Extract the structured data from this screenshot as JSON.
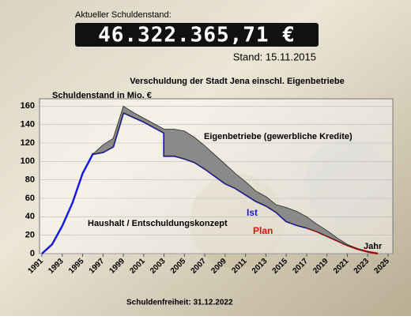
{
  "header": {
    "counter_label": "Aktueller Schuldenstand:",
    "counter_value": "46.322.365,71 €",
    "stand": "Stand: 15.11.2015"
  },
  "chart_data": {
    "type": "line",
    "title": "Verschuldung der Stadt Jena einschl. Eigenbetriebe",
    "y_label": "Schuldenstand in Mio. €",
    "x_label": "Jahr",
    "annotations": [
      "Eigenbetriebe (gewerbliche Kredite)",
      "Haushalt / Entschuldungskonzept",
      "Schuldenfreiheit: 31.12.2022"
    ],
    "x": [
      1991,
      1992,
      1993,
      1994,
      1995,
      1996,
      1997,
      1998,
      1999,
      2000,
      2001,
      2002,
      2003,
      2003,
      2004,
      2005,
      2006,
      2007,
      2008,
      2009,
      2010,
      2011,
      2012,
      2013,
      2014,
      2015,
      2016,
      2017,
      2018,
      2019,
      2020,
      2021,
      2022,
      2023,
      2024
    ],
    "series": [
      {
        "name": "Ist",
        "color": "#1a1adc",
        "values": [
          0,
          10,
          30,
          55,
          87,
          108,
          110,
          116,
          153,
          148,
          143,
          137,
          131,
          106,
          106,
          103,
          99,
          92,
          84,
          76,
          71,
          64,
          57,
          52,
          45,
          35,
          31,
          28,
          null,
          null,
          null,
          null,
          null,
          null,
          null
        ]
      },
      {
        "name": "Plan",
        "color": "#dd1111",
        "values": [
          null,
          null,
          null,
          null,
          null,
          null,
          null,
          null,
          null,
          null,
          null,
          null,
          null,
          null,
          null,
          null,
          null,
          null,
          null,
          null,
          null,
          null,
          null,
          null,
          null,
          null,
          null,
          28,
          24,
          19,
          14,
          9,
          5,
          2,
          0
        ]
      },
      {
        "name": "Eigenbetriebe (gewerbliche Kredite)",
        "color": "#8a8a8a",
        "stacked": true,
        "values": [
          null,
          null,
          null,
          null,
          null,
          0,
          8,
          9,
          7,
          5,
          4,
          4,
          4,
          29,
          29,
          30,
          27,
          25,
          23,
          21,
          16,
          14,
          11,
          10,
          8,
          15,
          15,
          12,
          8,
          6,
          3,
          1,
          0,
          0,
          0
        ]
      }
    ],
    "xlim": [
      1991,
      2025
    ],
    "xticks": [
      1991,
      1993,
      1995,
      1997,
      1999,
      2001,
      2003,
      2005,
      2007,
      2009,
      2011,
      2013,
      2015,
      2017,
      2019,
      2021,
      2023,
      2025
    ],
    "ylim": [
      0,
      168
    ],
    "yticks": [
      0,
      20,
      40,
      60,
      80,
      100,
      120,
      140,
      160
    ],
    "grid": true
  }
}
